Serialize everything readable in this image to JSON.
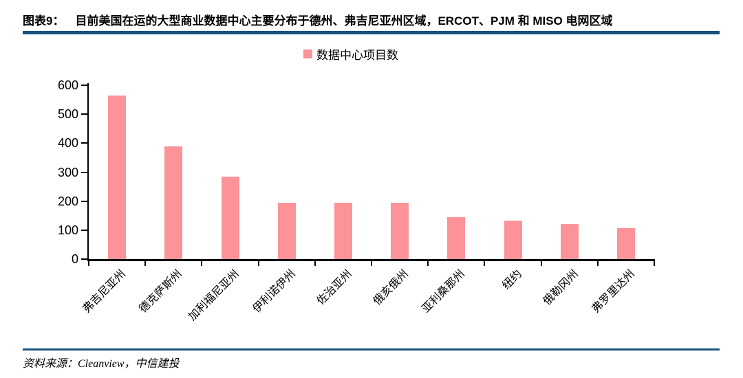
{
  "header": {
    "figure_label": "图表9：",
    "title": "目前美国在运的大型商业数据中心主要分布于德州、弗吉尼亚州区域，ERCOT、PJM 和 MISO 电网区域"
  },
  "legend": {
    "label": "数据中心项目数"
  },
  "chart_data": {
    "type": "bar",
    "title": "数据中心项目数",
    "xlabel": "",
    "ylabel": "",
    "categories": [
      "弗吉尼亚州",
      "德克萨斯州",
      "加利福尼亚州",
      "伊利诺伊州",
      "佐治亚州",
      "俄亥俄州",
      "亚利桑那州",
      "纽约",
      "俄勒冈州",
      "弗罗里达州"
    ],
    "values": [
      565,
      390,
      285,
      195,
      195,
      195,
      145,
      133,
      120,
      107
    ],
    "ylim": [
      0,
      600
    ],
    "yticks": [
      0,
      100,
      200,
      300,
      400,
      500,
      600
    ],
    "grid": false,
    "legend_position": "top-center",
    "bar_color": "#FC9399"
  },
  "footer": {
    "source": "资料来源：Cleanview，中信建投"
  },
  "colors": {
    "accent_rule": "#14537E",
    "bar": "#FC9399",
    "axis": "#000000",
    "text": "#000000"
  }
}
